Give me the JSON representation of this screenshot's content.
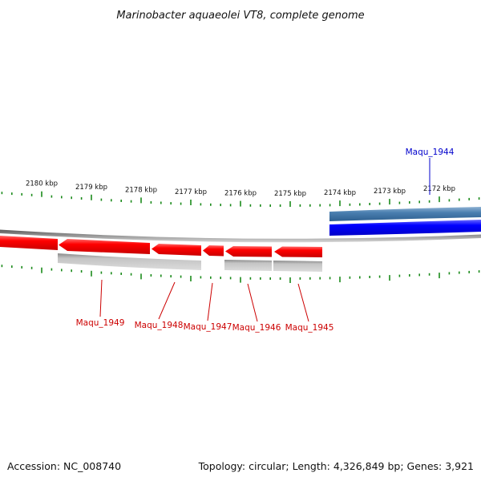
{
  "title": "Marinobacter aquaeolei VT8, complete genome",
  "footer": {
    "accession": "Accession: NC_008740",
    "summary": "Topology: circular; Length: 4,326,849 bp; Genes: 3,921"
  },
  "scale": {
    "labels": [
      "2180 kbp",
      "2179 kbp",
      "2178 kbp",
      "2177 kbp",
      "2176 kbp",
      "2175 kbp",
      "2174 kbp",
      "2173 kbp",
      "2172 kbp"
    ],
    "tick_color": "#1a8a1a"
  },
  "genes": [
    {
      "name": "Maqu_1949",
      "strand": "minus",
      "color": "#cc0000"
    },
    {
      "name": "Maqu_1948",
      "strand": "minus",
      "color": "#cc0000"
    },
    {
      "name": "Maqu_1947",
      "strand": "minus",
      "color": "#cc0000"
    },
    {
      "name": "Maqu_1946",
      "strand": "minus",
      "color": "#cc0000"
    },
    {
      "name": "Maqu_1945",
      "strand": "minus",
      "color": "#cc0000"
    },
    {
      "name": "Maqu_1944",
      "strand": "plus",
      "color": "#0000cc"
    }
  ],
  "colors": {
    "minus_strand": "#ff0000",
    "plus_strand": "#0000ff",
    "plus_feature": "#4a7fb0",
    "minus_feature": "#b8b8b8",
    "backbone": "#7a7a7a"
  }
}
